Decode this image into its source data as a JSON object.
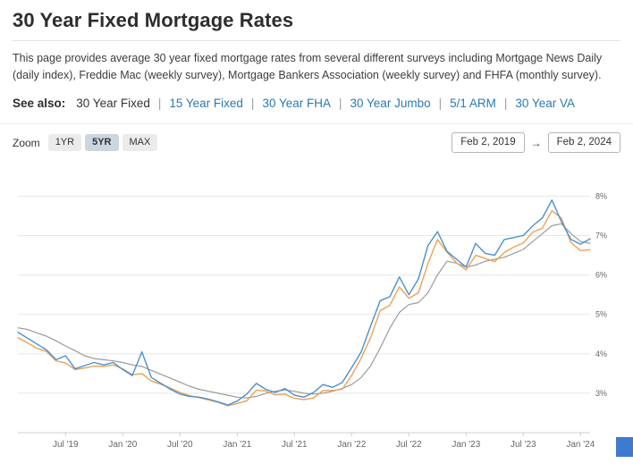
{
  "page": {
    "title": "30 Year Fixed Mortgage Rates",
    "description": "This page provides average 30 year fixed mortgage rates from several different surveys including Mortgage News Daily (daily index), Freddie Mac (weekly survey), Mortgage Bankers Association (weekly survey) and FHFA (monthly survey).",
    "see_also_label": "See also:"
  },
  "see_also": {
    "current": "30 Year Fixed",
    "separator": "|",
    "links": [
      "15 Year Fixed",
      "30 Year FHA",
      "30 Year Jumbo",
      "5/1 ARM",
      "30 Year VA"
    ]
  },
  "toolbar": {
    "zoom_label": "Zoom",
    "buttons": [
      {
        "label": "1YR",
        "active": false
      },
      {
        "label": "5YR",
        "active": true
      },
      {
        "label": "MAX",
        "active": false
      }
    ],
    "date_from": "Feb 2, 2019",
    "arrow": "→",
    "date_to": "Feb 2, 2024"
  },
  "chart_data": {
    "type": "line",
    "title": "30 Year Fixed Mortgage Rates, Feb 2, 2019 - Feb 2, 2024",
    "xlabel": "",
    "ylabel": "",
    "ylim": [
      2,
      8.35
    ],
    "yticks": [
      3,
      4,
      5,
      6,
      7,
      8
    ],
    "ytick_suffix": "%",
    "grid": "horizontal",
    "legend": "none",
    "x_start": "Feb 2019",
    "x_end": "Feb 2024",
    "x_unit": "month",
    "xticks": [
      {
        "i": 5,
        "label": "Jul '19"
      },
      {
        "i": 11,
        "label": "Jan '20"
      },
      {
        "i": 17,
        "label": "Jul '20"
      },
      {
        "i": 23,
        "label": "Jan '21"
      },
      {
        "i": 29,
        "label": "Jul '21"
      },
      {
        "i": 35,
        "label": "Jan '22"
      },
      {
        "i": 41,
        "label": "Jul '22"
      },
      {
        "i": 47,
        "label": "Jan '23"
      },
      {
        "i": 53,
        "label": "Jul '23"
      },
      {
        "i": 59,
        "label": "Jan '24"
      }
    ],
    "series": [
      {
        "key": "fhfa",
        "name": "FHFA (monthly survey)",
        "color": "#9b9b9b",
        "values": [
          4.66,
          4.62,
          4.53,
          4.45,
          4.33,
          4.2,
          4.08,
          3.95,
          3.88,
          3.85,
          3.82,
          3.78,
          3.72,
          3.68,
          3.58,
          3.48,
          3.38,
          3.28,
          3.18,
          3.1,
          3.05,
          3.0,
          2.95,
          2.9,
          2.88,
          2.92,
          3.0,
          3.05,
          3.08,
          3.05,
          3.0,
          2.98,
          3.0,
          3.05,
          3.12,
          3.22,
          3.4,
          3.7,
          4.15,
          4.65,
          5.05,
          5.25,
          5.3,
          5.55,
          6.0,
          6.35,
          6.3,
          6.2,
          6.25,
          6.35,
          6.4,
          6.45,
          6.55,
          6.65,
          6.85,
          7.05,
          7.25,
          7.3,
          7.05,
          6.85,
          6.8
        ]
      },
      {
        "key": "freddie-mac",
        "name": "Freddie Mac (weekly survey)",
        "color": "#eda153",
        "values": [
          4.41,
          4.28,
          4.14,
          4.06,
          3.82,
          3.77,
          3.6,
          3.64,
          3.69,
          3.68,
          3.72,
          3.62,
          3.47,
          3.5,
          3.31,
          3.23,
          3.13,
          3.02,
          2.94,
          2.89,
          2.83,
          2.77,
          2.68,
          2.74,
          2.81,
          3.08,
          3.06,
          2.96,
          2.98,
          2.87,
          2.84,
          2.88,
          3.07,
          3.07,
          3.1,
          3.45,
          3.89,
          4.42,
          5.1,
          5.23,
          5.7,
          5.41,
          5.55,
          6.29,
          6.9,
          6.58,
          6.31,
          6.13,
          6.5,
          6.42,
          6.34,
          6.57,
          6.71,
          6.81,
          7.09,
          7.19,
          7.63,
          7.44,
          6.82,
          6.62,
          6.64
        ]
      },
      {
        "key": "mortgage-news-daily",
        "name": "Mortgage News Daily (daily index)",
        "color": "#4a90d2",
        "values": [
          4.55,
          4.4,
          4.25,
          4.1,
          3.85,
          3.95,
          3.62,
          3.7,
          3.78,
          3.72,
          3.78,
          3.6,
          3.45,
          4.05,
          3.4,
          3.25,
          3.1,
          2.98,
          2.92,
          2.9,
          2.85,
          2.78,
          2.7,
          2.8,
          2.98,
          3.25,
          3.1,
          3.02,
          3.12,
          2.95,
          2.9,
          3.02,
          3.22,
          3.15,
          3.27,
          3.65,
          4.05,
          4.72,
          5.35,
          5.45,
          5.95,
          5.5,
          5.9,
          6.75,
          7.1,
          6.6,
          6.4,
          6.2,
          6.8,
          6.55,
          6.5,
          6.9,
          6.95,
          7.0,
          7.25,
          7.45,
          7.9,
          7.35,
          6.9,
          6.78,
          6.92
        ]
      }
    ]
  }
}
